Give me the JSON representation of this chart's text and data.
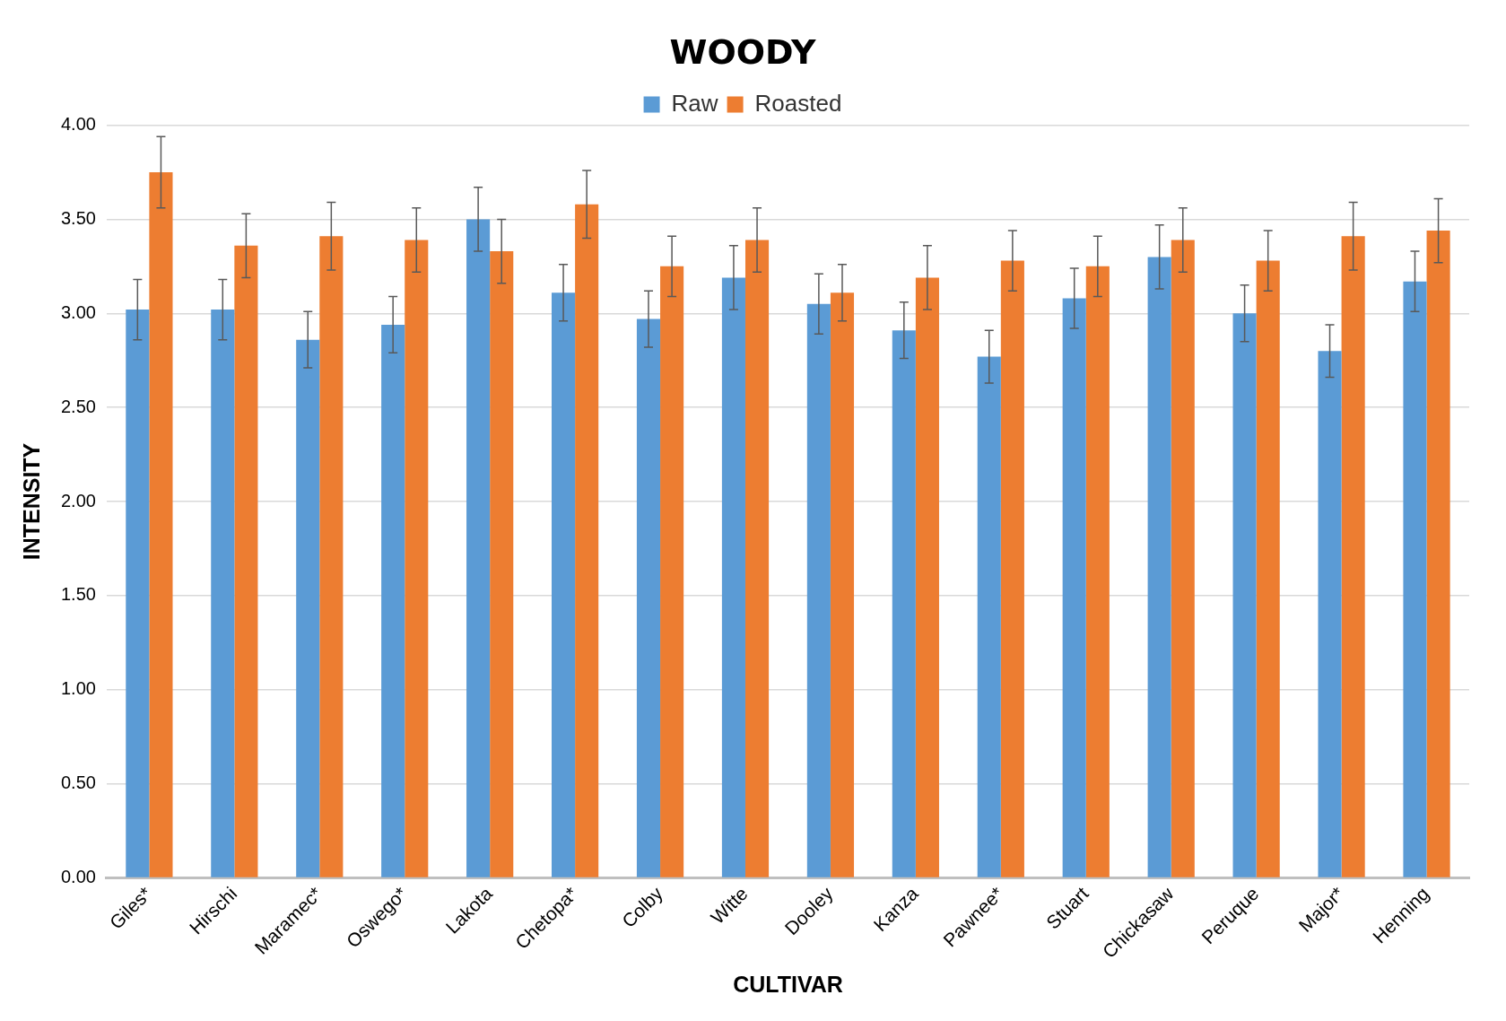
{
  "chart_data": {
    "type": "bar",
    "title": "WOODY",
    "xlabel": "CULTIVAR",
    "ylabel": "INTENSITY",
    "categories": [
      "Giles*",
      "Hirschi",
      "Maramec*",
      "Oswego*",
      "Lakota",
      "Chetopa*",
      "Colby",
      "Witte",
      "Dooley",
      "Kanza",
      "Pawnee*",
      "Stuart",
      "Chickasaw",
      "Peruque",
      "Major*",
      "Henning"
    ],
    "series": [
      {
        "name": "Raw",
        "color": "#5b9bd5",
        "values": [
          3.02,
          3.02,
          2.86,
          2.94,
          3.5,
          3.11,
          2.97,
          3.19,
          3.05,
          2.91,
          2.77,
          3.08,
          3.3,
          3.0,
          2.8,
          3.17
        ],
        "errors": [
          0.16,
          0.16,
          0.15,
          0.15,
          0.17,
          0.15,
          0.15,
          0.17,
          0.16,
          0.15,
          0.14,
          0.16,
          0.17,
          0.15,
          0.14,
          0.16
        ]
      },
      {
        "name": "Roasted",
        "color": "#ed7d31",
        "values": [
          3.75,
          3.36,
          3.41,
          3.39,
          3.33,
          3.58,
          3.25,
          3.39,
          3.11,
          3.19,
          3.28,
          3.25,
          3.39,
          3.28,
          3.41,
          3.44
        ],
        "errors": [
          0.19,
          0.17,
          0.18,
          0.17,
          0.17,
          0.18,
          0.16,
          0.17,
          0.15,
          0.17,
          0.16,
          0.16,
          0.17,
          0.16,
          0.18,
          0.17
        ]
      }
    ],
    "ylim": [
      0,
      4
    ],
    "yticks": [
      {
        "value": 0,
        "label": "0.00"
      },
      {
        "value": 0.5,
        "label": "0.50"
      },
      {
        "value": 1,
        "label": "1.00"
      },
      {
        "value": 1.5,
        "label": "1.50"
      },
      {
        "value": 2,
        "label": "2.00"
      },
      {
        "value": 2.5,
        "label": "2.50"
      },
      {
        "value": 3,
        "label": "3.00"
      },
      {
        "value": 3.5,
        "label": "3.50"
      },
      {
        "value": 4,
        "label": "4.00"
      }
    ],
    "grid": "y",
    "legend": "top"
  }
}
